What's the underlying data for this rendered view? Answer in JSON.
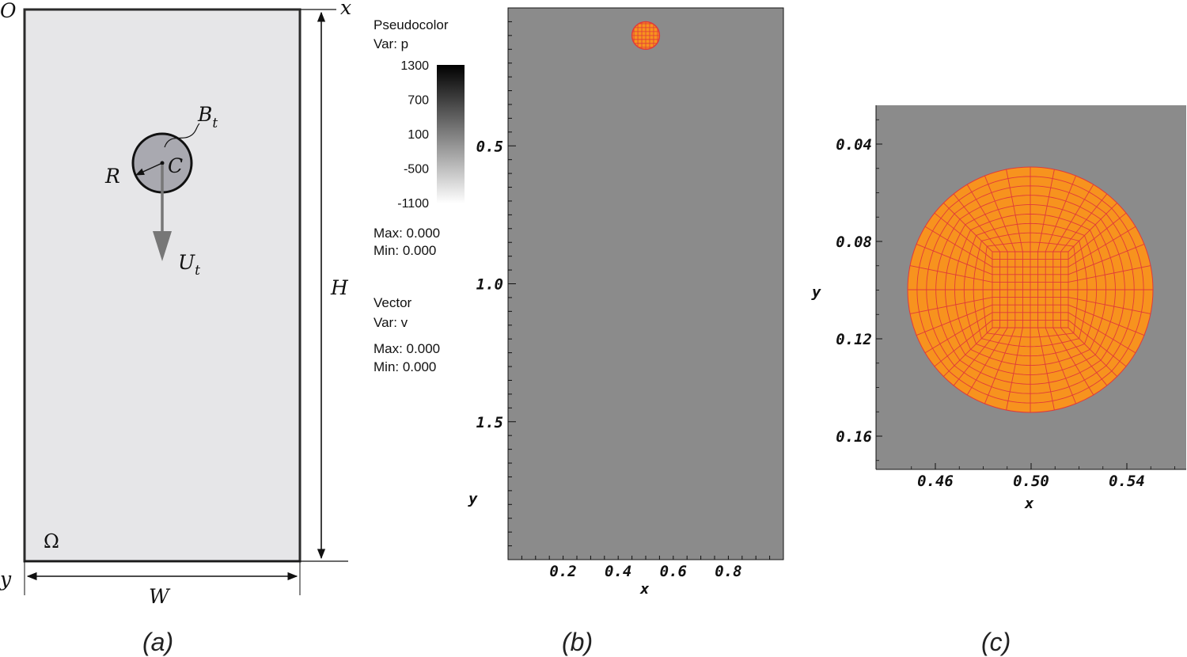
{
  "panel_a": {
    "origin": "O",
    "x_axis": "x",
    "y_axis": "y",
    "body_label": "B",
    "body_sub": "t",
    "center": "C",
    "radius": "R",
    "velocity": "U",
    "velocity_sub": "t",
    "height": "H",
    "width": "W",
    "domain": "Ω",
    "caption": "(a)"
  },
  "panel_b": {
    "legend": {
      "pc_title": "Pseudocolor",
      "pc_var": "Var: p",
      "colorbar_ticks": [
        "1300",
        "700",
        "100",
        "-500",
        "-1100"
      ],
      "pc_max": "Max: 0.000",
      "pc_min": "Min: 0.000",
      "vec_title": "Vector",
      "vec_var": "Var: v",
      "vec_max": "Max: 0.000",
      "vec_min": "Min: 0.000"
    },
    "x_ticks": [
      "0.2",
      "0.4",
      "0.6",
      "0.8"
    ],
    "y_ticks": [
      "0.5",
      "1.0",
      "1.5"
    ],
    "xlabel": "x",
    "ylabel": "y",
    "caption": "(b)"
  },
  "panel_c": {
    "x_ticks": [
      "0.46",
      "0.50",
      "0.54"
    ],
    "y_ticks": [
      "0.04",
      "0.08",
      "0.12",
      "0.16"
    ],
    "xlabel": "x",
    "ylabel": "y",
    "caption": "(c)"
  },
  "colors": {
    "domain_fill": "#e6e6e8",
    "body_fill": "#a9a9b0",
    "plot_bg": "#8b8b8b",
    "particle": "#f7931e",
    "mesh": "#e03a3a",
    "arrow": "#777777"
  }
}
